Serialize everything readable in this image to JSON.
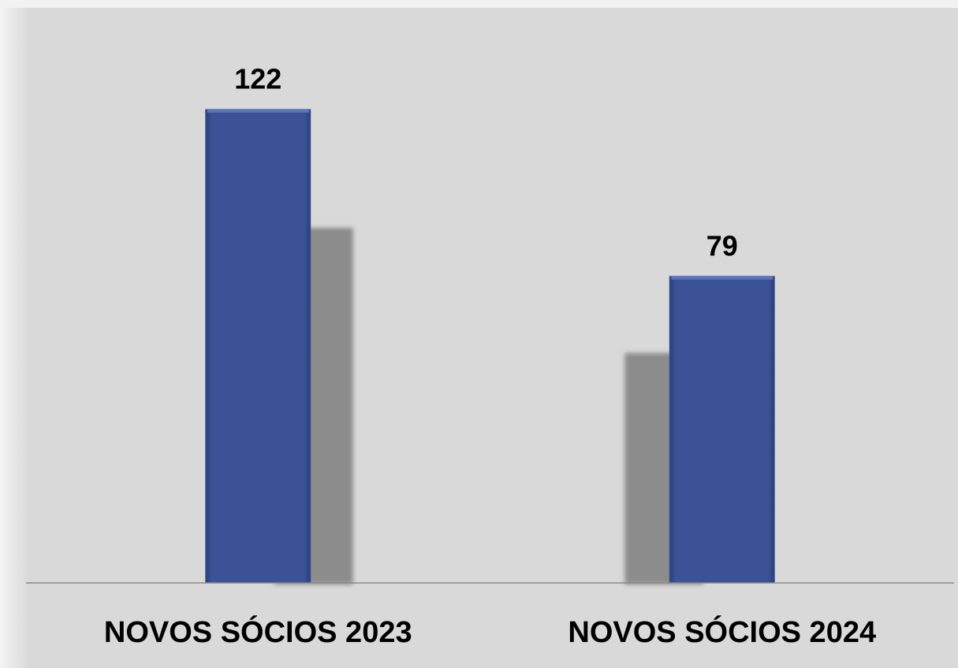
{
  "chart_data": {
    "type": "bar",
    "categories": [
      "NOVOS SÓCIOS 2023",
      "NOVOS SÓCIOS 2024"
    ],
    "values": [
      122,
      79
    ],
    "color": "#3b5297"
  }
}
